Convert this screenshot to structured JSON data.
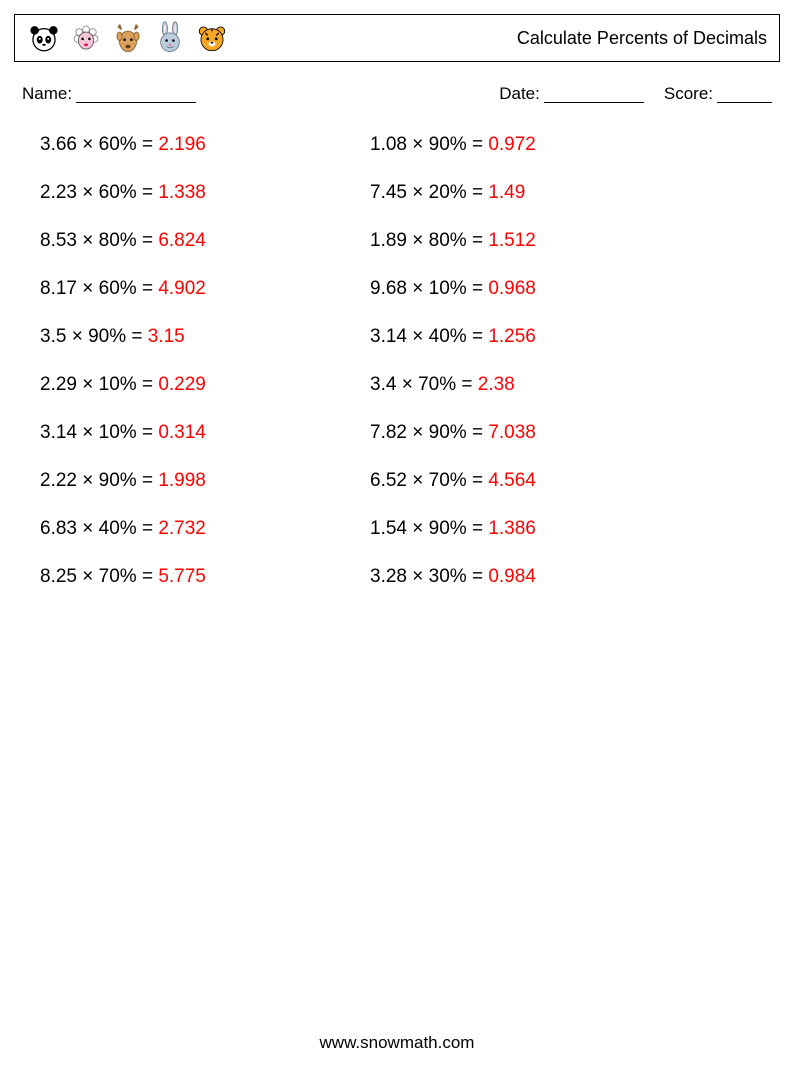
{
  "header": {
    "title": "Calculate Percents of Decimals",
    "icons": [
      "panda-icon",
      "sheep-icon",
      "deer-icon",
      "bunny-icon",
      "tiger-icon"
    ]
  },
  "meta": {
    "name_label": "Name:",
    "date_label": "Date:",
    "score_label": "Score:"
  },
  "problems": {
    "left": [
      {
        "a": "3.66",
        "b": "60%",
        "ans": "2.196"
      },
      {
        "a": "2.23",
        "b": "60%",
        "ans": "1.338"
      },
      {
        "a": "8.53",
        "b": "80%",
        "ans": "6.824"
      },
      {
        "a": "8.17",
        "b": "60%",
        "ans": "4.902"
      },
      {
        "a": "3.5",
        "b": "90%",
        "ans": "3.15"
      },
      {
        "a": "2.29",
        "b": "10%",
        "ans": "0.229"
      },
      {
        "a": "3.14",
        "b": "10%",
        "ans": "0.314"
      },
      {
        "a": "2.22",
        "b": "90%",
        "ans": "1.998"
      },
      {
        "a": "6.83",
        "b": "40%",
        "ans": "2.732"
      },
      {
        "a": "8.25",
        "b": "70%",
        "ans": "5.775"
      }
    ],
    "right": [
      {
        "a": "1.08",
        "b": "90%",
        "ans": "0.972"
      },
      {
        "a": "7.45",
        "b": "20%",
        "ans": "1.49"
      },
      {
        "a": "1.89",
        "b": "80%",
        "ans": "1.512"
      },
      {
        "a": "9.68",
        "b": "10%",
        "ans": "0.968"
      },
      {
        "a": "3.14",
        "b": "40%",
        "ans": "1.256"
      },
      {
        "a": "3.4",
        "b": "70%",
        "ans": "2.38"
      },
      {
        "a": "7.82",
        "b": "90%",
        "ans": "7.038"
      },
      {
        "a": "6.52",
        "b": "70%",
        "ans": "4.564"
      },
      {
        "a": "1.54",
        "b": "90%",
        "ans": "1.386"
      },
      {
        "a": "3.28",
        "b": "30%",
        "ans": "0.984"
      }
    ]
  },
  "footer": {
    "text": "www.snowmath.com"
  },
  "colors": {
    "answer": "#ff0000",
    "text": "#000000",
    "background": "#ffffff"
  }
}
